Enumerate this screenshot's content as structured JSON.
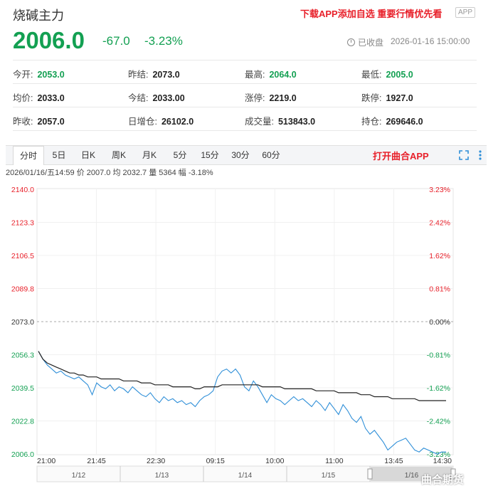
{
  "header": {
    "title": "烧碱主力",
    "promo": "下载APP添加自选 重要行情优先看",
    "app_badge": "APP"
  },
  "quote": {
    "price": "2006.0",
    "change": "-67.0",
    "change_pct": "-3.23%",
    "status": "已收盘",
    "datetime": "2026-01-16 15:00:00"
  },
  "stats": [
    [
      {
        "label": "今开:",
        "value": "2053.0",
        "color": "green"
      },
      {
        "label": "昨结:",
        "value": "2073.0",
        "color": "black"
      },
      {
        "label": "最高:",
        "value": "2064.0",
        "color": "green"
      },
      {
        "label": "最低:",
        "value": "2005.0",
        "color": "green"
      }
    ],
    [
      {
        "label": "均价:",
        "value": "2033.0",
        "color": "black"
      },
      {
        "label": "今结:",
        "value": "2033.00",
        "color": "black"
      },
      {
        "label": "涨停:",
        "value": "2219.0",
        "color": "black"
      },
      {
        "label": "跌停:",
        "value": "1927.0",
        "color": "black"
      }
    ],
    [
      {
        "label": "昨收:",
        "value": "2057.0",
        "color": "black"
      },
      {
        "label": "日增仓:",
        "value": "26102.0",
        "color": "black"
      },
      {
        "label": "成交量:",
        "value": "513843.0",
        "color": "black"
      },
      {
        "label": "持仓:",
        "value": "269646.0",
        "color": "black"
      }
    ]
  ],
  "toolbar": {
    "tabs": [
      "分时",
      "5日",
      "日K",
      "周K",
      "月K",
      "5分",
      "15分",
      "30分",
      "60分"
    ],
    "active": "分时",
    "open_app": "打开曲合APP"
  },
  "infobar": "2026/01/16/五14:59 价 2007.0 均 2032.7 量 5364 幅 -3.18%",
  "watermark": "曲合期货",
  "colors": {
    "up": "#e8202a",
    "down": "#13a052",
    "price_line": "#2f8fd8",
    "avg_line": "#222222"
  },
  "chart_data": {
    "type": "line",
    "y_ticks_left": [
      "2140.0",
      "2123.3",
      "2106.5",
      "2089.8",
      "2073.0",
      "2056.3",
      "2039.5",
      "2022.8",
      "2006.0"
    ],
    "y_ticks_right": [
      "3.23%",
      "2.42%",
      "1.62%",
      "0.81%",
      "0.00%",
      "-0.81%",
      "-1.62%",
      "-2.42%",
      "-3.23%"
    ],
    "ylim": [
      2006.0,
      2140.0
    ],
    "prev_settle": 2073.0,
    "x_ticks": [
      "21:00",
      "21:45",
      "22:30",
      "09:15",
      "10:00",
      "11:00",
      "13:45",
      "14:30"
    ],
    "nav_labels": [
      "1/12",
      "1/13",
      "1/14",
      "1/15",
      "1/16"
    ],
    "series": [
      {
        "values": [
          2058,
          2054,
          2051,
          2049,
          2047,
          2048,
          2046,
          2045,
          2044,
          2045,
          2043,
          2041,
          2036,
          2042,
          2040,
          2039,
          2041,
          2038,
          2040,
          2039,
          2037,
          2040,
          2038,
          2036,
          2035,
          2037,
          2034,
          2032,
          2035,
          2033,
          2034,
          2032,
          2033,
          2031,
          2032,
          2030,
          2033,
          2035,
          2036,
          2038,
          2045,
          2048,
          2049,
          2047,
          2049,
          2046,
          2040,
          2038,
          2043,
          2040,
          2036,
          2032,
          2036,
          2034,
          2033,
          2031,
          2033,
          2035,
          2033,
          2034,
          2032,
          2030,
          2033,
          2031,
          2028,
          2032,
          2029,
          2026,
          2031,
          2028,
          2024,
          2022,
          2025,
          2019,
          2016,
          2018,
          2015,
          2012,
          2008,
          2010,
          2012,
          2013,
          2014,
          2011,
          2008,
          2007,
          2009,
          2008,
          2007,
          2006,
          2007,
          2007
        ]
      },
      {
        "values": [
          2058,
          2054,
          2052,
          2051,
          2050,
          2049,
          2048,
          2047,
          2047,
          2046,
          2046,
          2045,
          2045,
          2045,
          2044,
          2044,
          2044,
          2044,
          2044,
          2043,
          2043,
          2043,
          2043,
          2042,
          2042,
          2042,
          2041,
          2041,
          2041,
          2041,
          2040,
          2040,
          2040,
          2040,
          2040,
          2039,
          2039,
          2040,
          2040,
          2040,
          2040,
          2041,
          2041,
          2041,
          2041,
          2041,
          2041,
          2041,
          2041,
          2041,
          2040,
          2040,
          2040,
          2040,
          2040,
          2039,
          2039,
          2039,
          2039,
          2039,
          2039,
          2039,
          2038,
          2038,
          2038,
          2038,
          2038,
          2037,
          2037,
          2037,
          2037,
          2037,
          2036,
          2036,
          2036,
          2035,
          2035,
          2035,
          2035,
          2034,
          2034,
          2034,
          2034,
          2034,
          2034,
          2033,
          2033,
          2033,
          2033,
          2033,
          2033,
          2033
        ]
      }
    ]
  }
}
